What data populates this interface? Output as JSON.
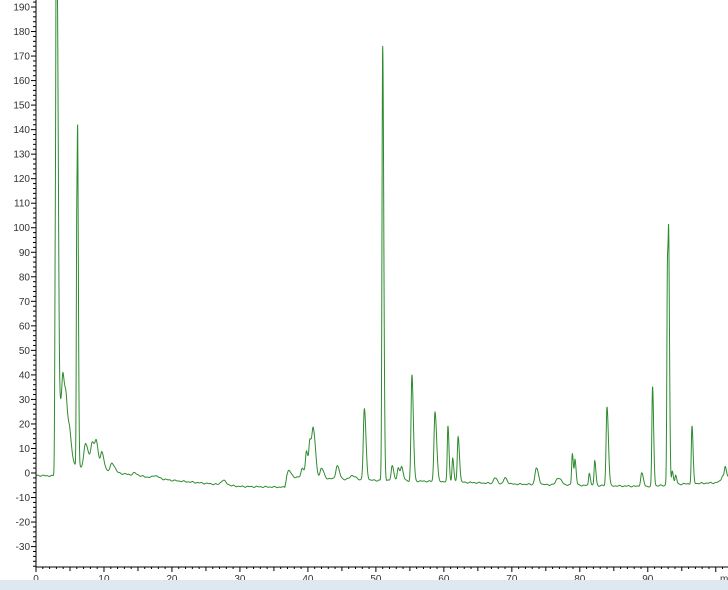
{
  "chart_data": {
    "type": "line",
    "title": "",
    "xlabel": "",
    "ylabel": "",
    "x_unit_label": "m",
    "xlim": [
      0,
      101.8
    ],
    "ylim": [
      -39,
      192
    ],
    "grid": false,
    "line_color": "#2e8b2e",
    "x_ticks": [
      0,
      10,
      20,
      30,
      40,
      50,
      60,
      70,
      80,
      90
    ],
    "y_ticks": [
      -30,
      -20,
      -10,
      0,
      10,
      20,
      30,
      40,
      50,
      60,
      70,
      80,
      90,
      100,
      110,
      120,
      130,
      140,
      150,
      160,
      170,
      180,
      190
    ],
    "baseline": [
      [
        0,
        -1
      ],
      [
        2.5,
        -1.2
      ],
      [
        5,
        3
      ],
      [
        8,
        2
      ],
      [
        12,
        0
      ],
      [
        16,
        -1.5
      ],
      [
        20,
        -3
      ],
      [
        26,
        -4.5
      ],
      [
        30,
        -5.5
      ],
      [
        36.6,
        -5.8
      ],
      [
        36.9,
        -1.5
      ],
      [
        40,
        -2
      ],
      [
        45,
        -2.5
      ],
      [
        50,
        -3
      ],
      [
        60,
        -3.5
      ],
      [
        70,
        -4.5
      ],
      [
        80,
        -5
      ],
      [
        90,
        -5.5
      ],
      [
        95,
        -4.5
      ],
      [
        100,
        -4
      ],
      [
        101.8,
        -2
      ]
    ],
    "peaks": [
      {
        "rt": 2.85,
        "apex": 95,
        "width": 0.08
      },
      {
        "rt": 3.0,
        "apex": 190,
        "width": 0.07
      },
      {
        "rt": 3.2,
        "apex": 119,
        "width": 0.08
      },
      {
        "rt": 3.4,
        "apex": 30,
        "width": 0.2
      },
      {
        "rt": 4.0,
        "apex": 35,
        "width": 0.2
      },
      {
        "rt": 4.5,
        "apex": 20,
        "width": 0.2
      },
      {
        "rt": 5.0,
        "apex": 12,
        "width": 0.2
      },
      {
        "rt": 6.0,
        "apex": 102,
        "width": 0.07
      },
      {
        "rt": 6.15,
        "apex": 94,
        "width": 0.07
      },
      {
        "rt": 7.3,
        "apex": 12,
        "width": 0.25
      },
      {
        "rt": 8.3,
        "apex": 12,
        "width": 0.25
      },
      {
        "rt": 8.9,
        "apex": 10,
        "width": 0.2
      },
      {
        "rt": 9.7,
        "apex": 8,
        "width": 0.2
      },
      {
        "rt": 11.2,
        "apex": 4,
        "width": 0.25
      },
      {
        "rt": 14.5,
        "apex": 0,
        "width": 0.25
      },
      {
        "rt": 17.5,
        "apex": -1,
        "width": 0.3
      },
      {
        "rt": 27.5,
        "apex": -3,
        "width": 0.3
      },
      {
        "rt": 37.2,
        "apex": 1,
        "width": 0.2
      },
      {
        "rt": 39.2,
        "apex": 2,
        "width": 0.2
      },
      {
        "rt": 39.8,
        "apex": 8,
        "width": 0.15
      },
      {
        "rt": 40.3,
        "apex": 12,
        "width": 0.15
      },
      {
        "rt": 40.8,
        "apex": 17,
        "width": 0.2
      },
      {
        "rt": 42.0,
        "apex": 2,
        "width": 0.2
      },
      {
        "rt": 44.3,
        "apex": 3,
        "width": 0.2
      },
      {
        "rt": 46.5,
        "apex": -1,
        "width": 0.3
      },
      {
        "rt": 48.3,
        "apex": 26,
        "width": 0.15
      },
      {
        "rt": 51.0,
        "apex": 174,
        "width": 0.1
      },
      {
        "rt": 52.4,
        "apex": 3,
        "width": 0.15
      },
      {
        "rt": 53.3,
        "apex": 2,
        "width": 0.15
      },
      {
        "rt": 53.8,
        "apex": 2,
        "width": 0.15
      },
      {
        "rt": 55.3,
        "apex": 40,
        "width": 0.13
      },
      {
        "rt": 58.7,
        "apex": 25,
        "width": 0.15
      },
      {
        "rt": 60.6,
        "apex": 19,
        "width": 0.1
      },
      {
        "rt": 61.3,
        "apex": 6,
        "width": 0.1
      },
      {
        "rt": 62.1,
        "apex": 15,
        "width": 0.12
      },
      {
        "rt": 67.5,
        "apex": -2,
        "width": 0.2
      },
      {
        "rt": 69.0,
        "apex": -2,
        "width": 0.2
      },
      {
        "rt": 73.6,
        "apex": 2,
        "width": 0.2
      },
      {
        "rt": 76.8,
        "apex": -2,
        "width": 0.3
      },
      {
        "rt": 78.9,
        "apex": 8,
        "width": 0.1
      },
      {
        "rt": 79.3,
        "apex": 5,
        "width": 0.1
      },
      {
        "rt": 81.4,
        "apex": 0,
        "width": 0.1
      },
      {
        "rt": 82.2,
        "apex": 5,
        "width": 0.1
      },
      {
        "rt": 84.0,
        "apex": 27,
        "width": 0.13
      },
      {
        "rt": 89.1,
        "apex": 0,
        "width": 0.15
      },
      {
        "rt": 90.7,
        "apex": 35,
        "width": 0.1
      },
      {
        "rt": 92.9,
        "apex": 86,
        "width": 0.09
      },
      {
        "rt": 93.1,
        "apex": 60,
        "width": 0.08
      },
      {
        "rt": 93.6,
        "apex": 1,
        "width": 0.1
      },
      {
        "rt": 94.1,
        "apex": -1,
        "width": 0.1
      },
      {
        "rt": 96.5,
        "apex": 19,
        "width": 0.1
      },
      {
        "rt": 101.0,
        "apex": -1,
        "width": 0.15
      },
      {
        "rt": 101.4,
        "apex": 2,
        "width": 0.12
      }
    ]
  }
}
